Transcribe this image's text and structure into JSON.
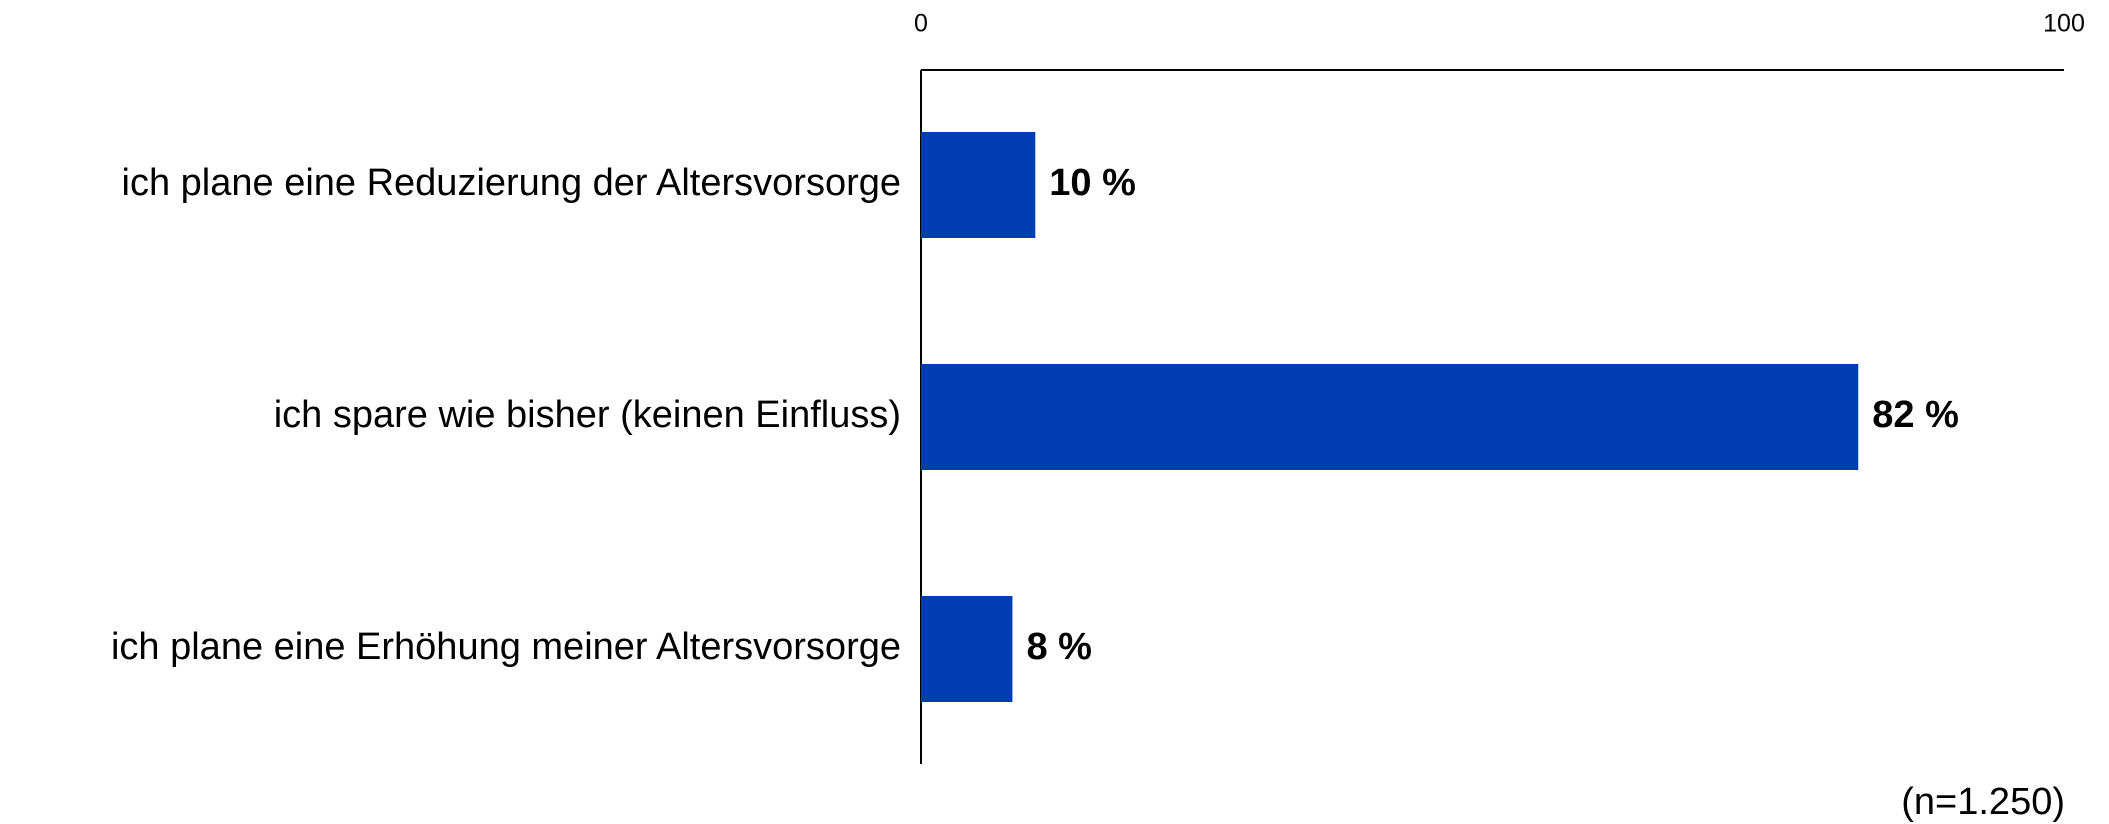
{
  "chart_data": {
    "type": "bar",
    "orientation": "horizontal",
    "categories": [
      "ich plane eine Reduzierung der Altersvorsorge",
      "ich spare wie bisher (keinen Einfluss)",
      "ich plane eine Erhöhung meiner Altersvorsorge"
    ],
    "values": [
      10,
      82,
      8
    ],
    "value_labels": [
      "10 %",
      "82 %",
      "8 %"
    ],
    "color": "#003db5",
    "xlim": [
      0,
      100
    ],
    "xticks": [
      0,
      100
    ],
    "note": "(n=1.250)"
  }
}
